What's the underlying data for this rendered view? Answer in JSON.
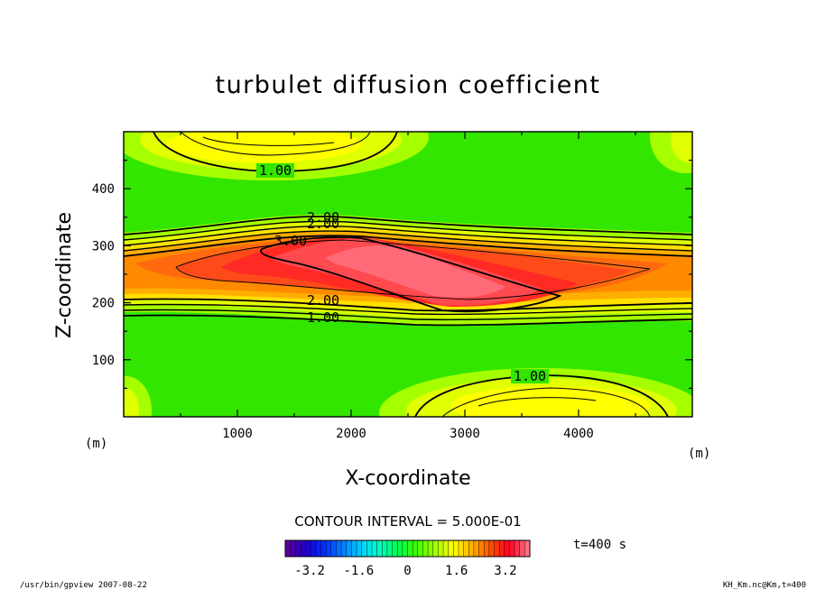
{
  "chart_data": {
    "type": "contour",
    "title": "turbulet diffusion coefficient",
    "xlabel": "X-coordinate",
    "ylabel": "Z-coordinate",
    "x_unit": "(m)",
    "y_unit": "(m)",
    "xlim": [
      0,
      5000
    ],
    "ylim": [
      0,
      500
    ],
    "x_ticks": [
      1000,
      2000,
      3000,
      4000
    ],
    "y_ticks": [
      100,
      200,
      300,
      400
    ],
    "contour_interval_text": "CONTOUR INTERVAL = 5.000E-01",
    "contour_labels": [
      "1.00",
      "1.00",
      "2.00",
      "3.00",
      "2.00",
      "1.00",
      "1.00"
    ],
    "colorbar": {
      "range": [
        -4,
        4
      ],
      "ticks": [
        "-3.2",
        "-1.6",
        "0",
        "1.6",
        "3.2"
      ],
      "colors": [
        "#5a00a0",
        "#1e00c8",
        "#0030ff",
        "#0080ff",
        "#00d0ff",
        "#00ffc0",
        "#00ff50",
        "#40ff00",
        "#a0ff00",
        "#ffff00",
        "#ffb000",
        "#ff5000",
        "#ff0020",
        "#ff7080"
      ]
    },
    "time_label": "t=400 s",
    "footer_left": "/usr/bin/gpview  2007-08-22",
    "footer_right": "KH_Km.nc@Km,t=400"
  }
}
